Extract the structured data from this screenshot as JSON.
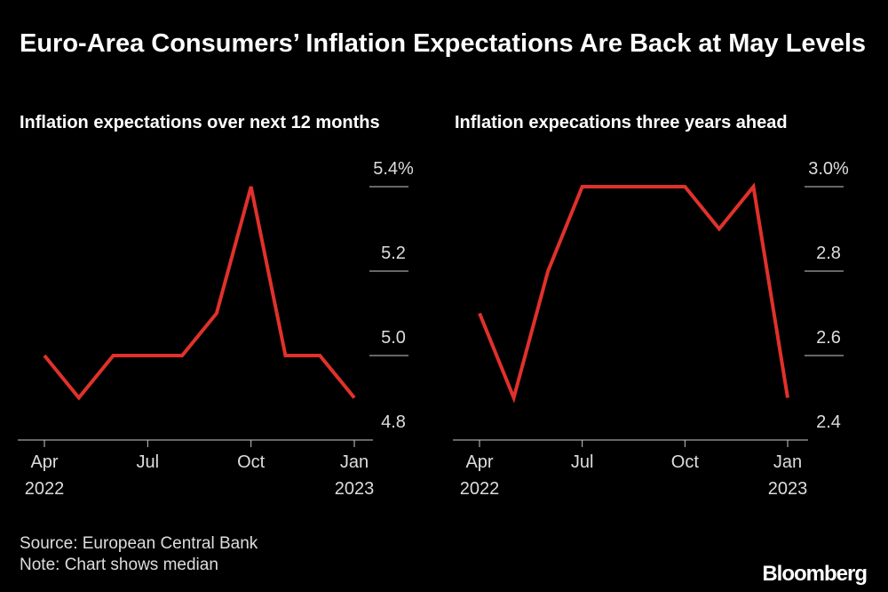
{
  "title": "Euro-Area Consumers’ Inflation Expectations Are Back at May Levels",
  "source": "Source: European Central Bank",
  "note": "Note: Chart shows median",
  "logo": "Bloomberg",
  "chart_data": [
    {
      "type": "line",
      "title": "Inflation expectations over next 12 months",
      "categories": [
        "Apr 2022",
        null,
        null,
        "Jul",
        null,
        null,
        "Oct",
        null,
        null,
        "Jan 2023"
      ],
      "values": [
        5.0,
        4.9,
        5.0,
        5.0,
        5.0,
        5.1,
        5.4,
        5.0,
        5.0,
        4.9
      ],
      "color": "#e0312b",
      "ylim": [
        4.8,
        5.4
      ],
      "yticks": [
        {
          "value": 5.4,
          "label": "5.4%"
        },
        5.2,
        {
          "value": 5,
          "label": "5.0"
        },
        4.8
      ]
    },
    {
      "type": "line",
      "title": "Inflation expecations three years ahead",
      "categories": [
        "Apr 2022",
        null,
        null,
        "Jul",
        null,
        null,
        "Oct",
        null,
        null,
        "Jan 2023"
      ],
      "values": [
        2.7,
        2.5,
        2.8,
        3.0,
        3.0,
        3.0,
        3.0,
        2.9,
        3.0,
        2.5
      ],
      "color": "#e0312b",
      "ylim": [
        2.4,
        3.0
      ],
      "yticks": [
        {
          "value": 3,
          "label": "3.0%"
        },
        2.8,
        2.6,
        2.4
      ]
    }
  ]
}
